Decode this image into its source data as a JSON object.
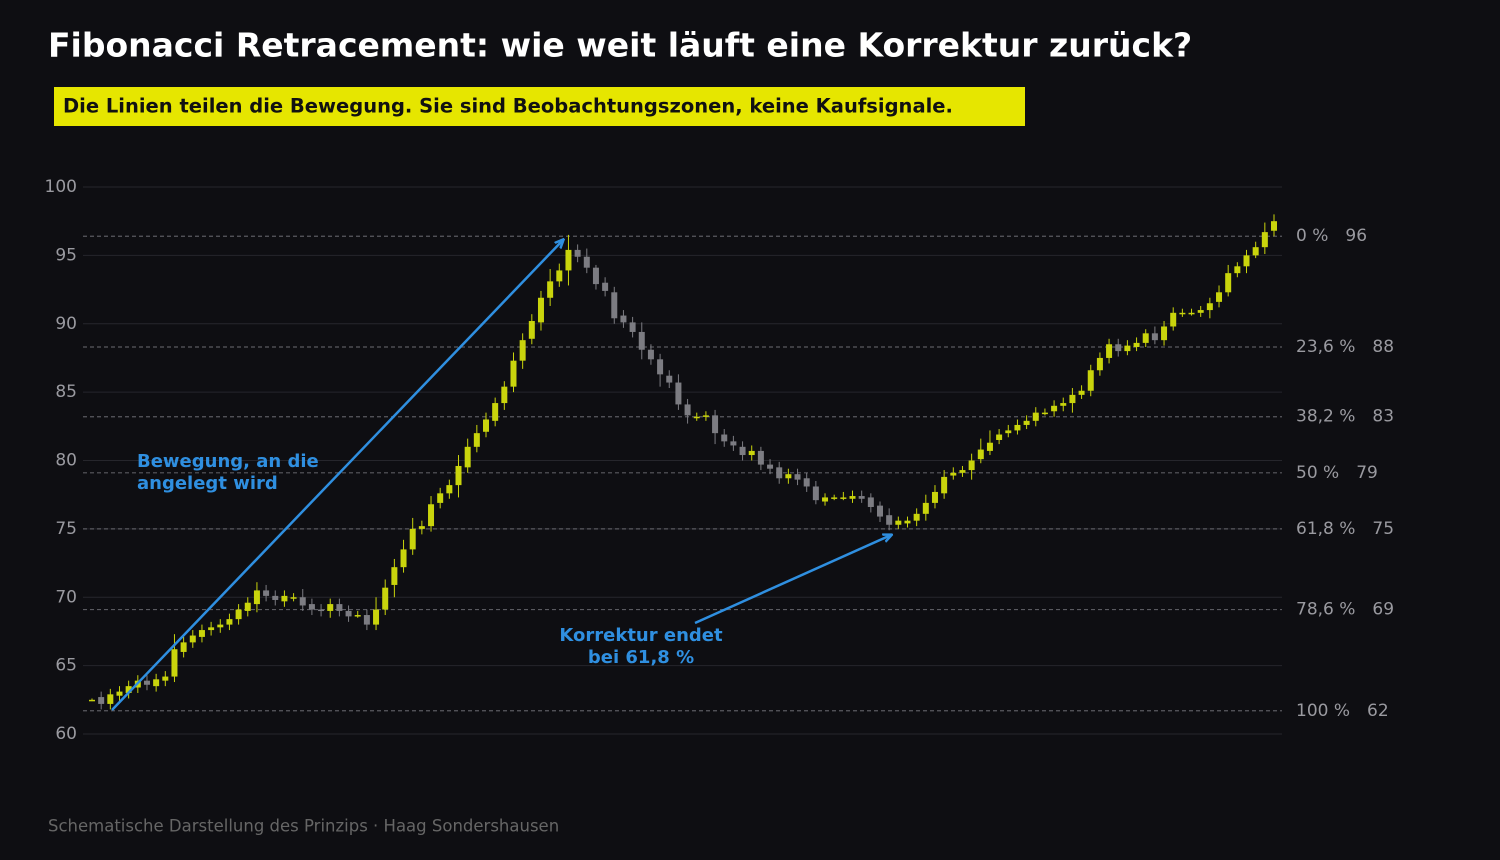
{
  "chart_data": {
    "type": "candlestick",
    "title": "Fibonacci Retracement: wie weit läuft eine Korrektur zurück?",
    "subtitle": "Die Linien teilen die Bewegung. Sie sind Beobachtungszonen, keine Kaufsignale.",
    "footer": "Schematische Darstellung des Prinzips  ·  Haag Sondershausen",
    "ylim": [
      60,
      100
    ],
    "yticks": [
      60,
      65,
      70,
      75,
      80,
      85,
      90,
      95,
      100
    ],
    "grid": true,
    "up_color": "#c9d40c",
    "down_color": "#7c7c82",
    "open": [
      62.5,
      62.7,
      62.2,
      62.8,
      63.0,
      63.4,
      63.9,
      63.5,
      63.9,
      64.2,
      66.0,
      66.7,
      67.1,
      67.6,
      67.8,
      68.0,
      68.4,
      69.0,
      69.5,
      70.5,
      70.1,
      69.7,
      70.0,
      70.0,
      69.5,
      69.1,
      69.0,
      69.5,
      69.0,
      68.7,
      68.7,
      68.0,
      69.1,
      70.9,
      72.2,
      73.5,
      75.0,
      75.2,
      76.9,
      77.6,
      78.2,
      79.5,
      81.0,
      82.1,
      82.9,
      84.2,
      85.4,
      87.3,
      88.9,
      90.1,
      91.9,
      93.1,
      93.9,
      95.4,
      94.9,
      94.1,
      93.0,
      92.3,
      90.6,
      90.1,
      89.4,
      88.1,
      87.4,
      86.2,
      85.7,
      84.1,
      83.2,
      83.2,
      83.3,
      81.9,
      81.4,
      81.0,
      80.4,
      80.7,
      79.7,
      79.5,
      78.7,
      79.0,
      78.7,
      78.1,
      77.0,
      77.3,
      77.3,
      77.2,
      77.4,
      77.3,
      76.7,
      76.0,
      75.3,
      75.4,
      75.6,
      76.1,
      76.9,
      77.6,
      78.9,
      79.1,
      79.3,
      80.1,
      80.7,
      81.5,
      82.0,
      82.2,
      82.6,
      82.9,
      83.5,
      83.6,
      84.0,
      84.2,
      84.8,
      85.1,
      86.6,
      87.5,
      88.5,
      88.0,
      88.3,
      88.6,
      89.3,
      88.8,
      89.8,
      90.8,
      90.8,
      90.8,
      91.0,
      91.6,
      92.3,
      93.7,
      94.2,
      95.0,
      95.6,
      96.8
    ],
    "high": [
      62.6,
      63.1,
      63.3,
      63.5,
      63.9,
      64.3,
      64.3,
      64.4,
      64.6,
      67.3,
      67.1,
      67.6,
      68.0,
      68.2,
      68.4,
      68.8,
      69.5,
      70.0,
      71.1,
      70.9,
      70.5,
      70.5,
      70.3,
      70.6,
      69.9,
      69.5,
      69.9,
      69.9,
      69.4,
      69.0,
      69.1,
      70.0,
      71.3,
      72.8,
      74.2,
      75.8,
      75.6,
      77.4,
      78.0,
      78.6,
      80.4,
      81.6,
      82.6,
      83.5,
      84.6,
      85.8,
      87.9,
      89.3,
      90.7,
      92.4,
      94.0,
      94.4,
      96.5,
      95.8,
      95.5,
      94.3,
      93.4,
      92.7,
      91.0,
      90.5,
      90.1,
      88.5,
      87.8,
      86.6,
      86.3,
      84.5,
      83.5,
      83.6,
      83.7,
      82.3,
      81.8,
      81.4,
      81.1,
      81.0,
      80.1,
      79.9,
      79.4,
      79.4,
      79.1,
      78.5,
      77.6,
      77.5,
      77.7,
      77.8,
      77.8,
      77.6,
      77.0,
      76.5,
      75.9,
      75.9,
      76.5,
      77.5,
      78.2,
      79.3,
      79.5,
      79.6,
      80.5,
      81.6,
      82.2,
      82.3,
      82.6,
      83.0,
      83.3,
      83.9,
      83.8,
      84.4,
      84.6,
      85.3,
      85.5,
      87.0,
      87.9,
      88.9,
      88.9,
      88.8,
      89.0,
      89.6,
      89.8,
      90.2,
      91.2,
      91.1,
      91.1,
      91.3,
      91.9,
      92.8,
      94.3,
      94.5,
      95.4,
      96.0,
      97.4,
      98.0
    ],
    "low": [
      62.4,
      61.8,
      61.8,
      62.4,
      62.6,
      63.0,
      63.2,
      63.1,
      63.5,
      63.8,
      65.6,
      66.3,
      66.7,
      67.2,
      67.4,
      67.6,
      68.0,
      68.6,
      68.9,
      69.7,
      69.4,
      69.3,
      69.7,
      69.0,
      68.7,
      68.6,
      68.5,
      68.6,
      68.2,
      68.5,
      67.6,
      67.6,
      68.7,
      70.0,
      71.8,
      73.1,
      74.6,
      74.8,
      76.5,
      77.2,
      77.3,
      79.1,
      80.6,
      81.7,
      82.5,
      83.7,
      85.0,
      86.7,
      88.5,
      89.5,
      91.3,
      92.7,
      92.8,
      94.5,
      93.7,
      92.5,
      92.0,
      90.0,
      89.7,
      89.0,
      87.4,
      87.0,
      85.4,
      85.3,
      83.7,
      82.7,
      82.9,
      82.9,
      81.2,
      81.0,
      80.7,
      80.0,
      80.0,
      79.3,
      79.0,
      78.3,
      78.3,
      78.2,
      77.7,
      76.8,
      76.7,
      77.1,
      77.1,
      76.9,
      76.9,
      76.2,
      75.5,
      74.9,
      75.0,
      75.1,
      75.2,
      75.6,
      76.5,
      77.2,
      78.6,
      78.8,
      78.6,
      79.8,
      80.4,
      81.2,
      81.7,
      81.9,
      82.3,
      82.5,
      83.3,
      83.2,
      83.6,
      83.5,
      84.5,
      84.7,
      86.2,
      87.1,
      87.6,
      87.7,
      88.0,
      88.3,
      88.5,
      88.4,
      89.5,
      90.5,
      90.6,
      90.5,
      90.4,
      91.2,
      92.0,
      93.4,
      93.7,
      94.8,
      95.1,
      96.4
    ],
    "close": [
      62.5,
      62.2,
      62.9,
      63.1,
      63.5,
      63.9,
      63.6,
      64.0,
      64.2,
      66.2,
      66.7,
      67.2,
      67.6,
      67.8,
      68.0,
      68.4,
      69.1,
      69.6,
      70.5,
      70.1,
      69.8,
      70.1,
      70.0,
      69.4,
      69.1,
      69.0,
      69.5,
      69.0,
      68.6,
      68.7,
      68.0,
      69.1,
      70.7,
      72.2,
      73.5,
      75.0,
      75.2,
      76.8,
      77.6,
      78.2,
      79.6,
      81.0,
      82.0,
      83.0,
      84.2,
      85.4,
      87.3,
      88.8,
      90.2,
      91.9,
      93.1,
      93.9,
      95.4,
      94.9,
      94.1,
      92.9,
      92.4,
      90.4,
      90.1,
      89.4,
      88.1,
      87.4,
      86.3,
      85.7,
      84.1,
      83.3,
      83.2,
      83.3,
      82.0,
      81.4,
      81.1,
      80.4,
      80.7,
      79.7,
      79.4,
      78.7,
      79.0,
      78.6,
      78.1,
      77.1,
      77.3,
      77.3,
      77.3,
      77.4,
      77.2,
      76.6,
      75.9,
      75.3,
      75.6,
      75.6,
      76.1,
      76.9,
      77.7,
      78.8,
      79.1,
      79.3,
      80.0,
      80.8,
      81.3,
      81.9,
      82.2,
      82.6,
      82.9,
      83.5,
      83.5,
      84.0,
      84.2,
      84.8,
      85.1,
      86.6,
      87.5,
      88.5,
      88.0,
      88.4,
      88.6,
      89.3,
      88.8,
      89.8,
      90.8,
      90.8,
      90.8,
      91.0,
      91.5,
      92.3,
      93.7,
      94.2,
      95.0,
      95.6,
      96.7,
      97.5
    ],
    "levels": [
      {
        "label": "0 %",
        "value": 96.4,
        "value_label": "96"
      },
      {
        "label": "23,6 %",
        "value": 88.3,
        "value_label": "88"
      },
      {
        "label": "38,2 %",
        "value": 83.2,
        "value_label": "83"
      },
      {
        "label": "50 %",
        "value": 79.1,
        "value_label": "79"
      },
      {
        "label": "61,8 %",
        "value": 75.0,
        "value_label": "75"
      },
      {
        "label": "78,6 %",
        "value": 69.1,
        "value_label": "69"
      },
      {
        "label": "100 %",
        "value": 61.7,
        "value_label": "62"
      }
    ],
    "annotations": [
      {
        "lines": [
          "Bewegung, an die",
          "angelegt wird"
        ]
      },
      {
        "lines": [
          "Korrektur endet",
          "bei 61,8 %"
        ]
      }
    ]
  }
}
